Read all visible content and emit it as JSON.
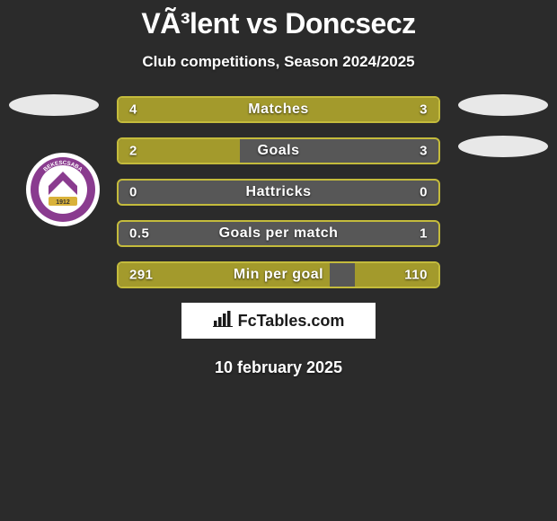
{
  "background_color": "#2b2b2b",
  "title": "VÃ³lent vs Doncsecz",
  "title_fontsize": 32,
  "title_color": "#ffffff",
  "subtitle": "Club competitions, Season 2024/2025",
  "subtitle_fontsize": 17,
  "subtitle_color": "#ffffff",
  "accent_fill": "#a39a2c",
  "accent_border": "#c4bb3c",
  "bar_track": "#575757",
  "pill_color": "#e8e8e8",
  "club_badge": {
    "outer_ring": "#ffffff",
    "inner_ring": "#8a3b8f",
    "inner_bg": "#ffffff",
    "chevron": "#8a3b8f",
    "base": "#d9b23a",
    "text_top": "BEKESCSABA",
    "text_mid": "1912 ELORE SE",
    "year": "1912"
  },
  "rows": [
    {
      "label": "Matches",
      "left": "4",
      "right": "3",
      "left_pct": 100,
      "right_pct": 0
    },
    {
      "label": "Goals",
      "left": "2",
      "right": "3",
      "left_pct": 38,
      "right_pct": 0
    },
    {
      "label": "Hattricks",
      "left": "0",
      "right": "0",
      "left_pct": 0,
      "right_pct": 0
    },
    {
      "label": "Goals per match",
      "left": "0.5",
      "right": "1",
      "left_pct": 0,
      "right_pct": 0
    },
    {
      "label": "Min per goal",
      "left": "291",
      "right": "110",
      "left_pct": 66,
      "right_pct": 26
    }
  ],
  "logo_text": "FcTables.com",
  "date_text": "10 february 2025",
  "date_fontsize": 18
}
